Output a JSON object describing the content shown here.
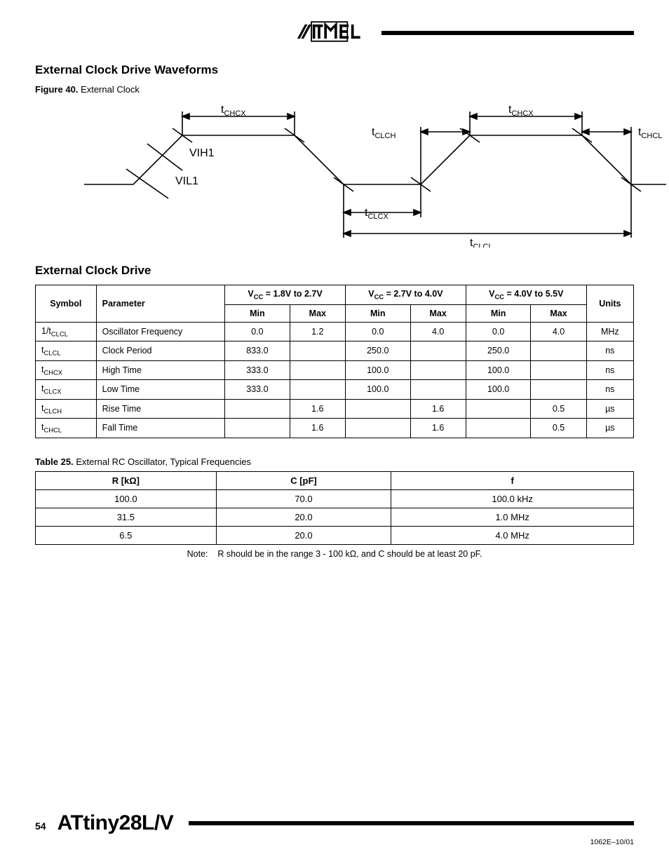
{
  "header": {
    "logo_alt": "ATMEL"
  },
  "section1_title": "External Clock Drive Waveforms",
  "figure": {
    "label": "Figure 40.",
    "title": "External Clock",
    "labels": {
      "tCHCX_left": "t",
      "tCHCX_left_sub": "CHCX",
      "tCLCH": "t",
      "tCLCH_sub": "CLCH",
      "tCHCX_right": "t",
      "tCHCX_right_sub": "CHCX",
      "tCHCL": "t",
      "tCHCL_sub": "CHCL",
      "VIH1": "VIH1",
      "VIL1": "VIL1",
      "tCLCX": "t",
      "tCLCX_sub": "CLCX",
      "tCLCL": "t",
      "tCLCL_sub": "CLCL"
    },
    "style": {
      "stroke": "#000000",
      "stroke_width": 1.6,
      "font_size": 16,
      "sub_font_size": 11
    }
  },
  "section2_title": "External Clock Drive",
  "spec_table": {
    "group_headers": [
      "",
      "",
      "V_CC = 1.8V to 2.7V",
      "V_CC = 2.7V to 4.0V",
      "V_CC = 4.0V to 5.5V",
      ""
    ],
    "col_headers": [
      "Symbol",
      "Parameter",
      "Min",
      "Max",
      "Min",
      "Max",
      "Min",
      "Max",
      "Units"
    ],
    "rows": [
      {
        "sym": "1/t",
        "sub": "CLCL",
        "param": "Oscillator Frequency",
        "v": [
          "0.0",
          "1.2",
          "0.0",
          "4.0",
          "0.0",
          "4.0"
        ],
        "u": "MHz"
      },
      {
        "sym": "t",
        "sub": "CLCL",
        "param": "Clock Period",
        "v": [
          "833.0",
          "",
          "250.0",
          "",
          "250.0",
          ""
        ],
        "u": "ns"
      },
      {
        "sym": "t",
        "sub": "CHCX",
        "param": "High Time",
        "v": [
          "333.0",
          "",
          "100.0",
          "",
          "100.0",
          ""
        ],
        "u": "ns"
      },
      {
        "sym": "t",
        "sub": "CLCX",
        "param": "Low Time",
        "v": [
          "333.0",
          "",
          "100.0",
          "",
          "100.0",
          ""
        ],
        "u": "ns"
      },
      {
        "sym": "t",
        "sub": "CLCH",
        "param": "Rise Time",
        "v": [
          "",
          "1.6",
          "",
          "1.6",
          "",
          "0.5"
        ],
        "u": "µs"
      },
      {
        "sym": "t",
        "sub": "CHCL",
        "param": "Fall Time",
        "v": [
          "",
          "1.6",
          "",
          "1.6",
          "",
          "0.5"
        ],
        "u": "µs"
      }
    ]
  },
  "table25": {
    "label": "Table 25.",
    "title": "External RC Oscillator, Typical Frequencies",
    "headers": [
      "R [kΩ]",
      "C [pF]",
      "f"
    ],
    "rows": [
      [
        "100.0",
        "70.0",
        "100.0 kHz"
      ],
      [
        "31.5",
        "20.0",
        "1.0 MHz"
      ],
      [
        "6.5",
        "20.0",
        "4.0 MHz"
      ]
    ],
    "note_label": "Note:",
    "note_text": "R should be in the range 3 - 100 kΩ, and C should be at least 20 pF."
  },
  "footer": {
    "page": "54",
    "chip": "ATtiny28L/V",
    "rev": "1062E–10/01"
  }
}
